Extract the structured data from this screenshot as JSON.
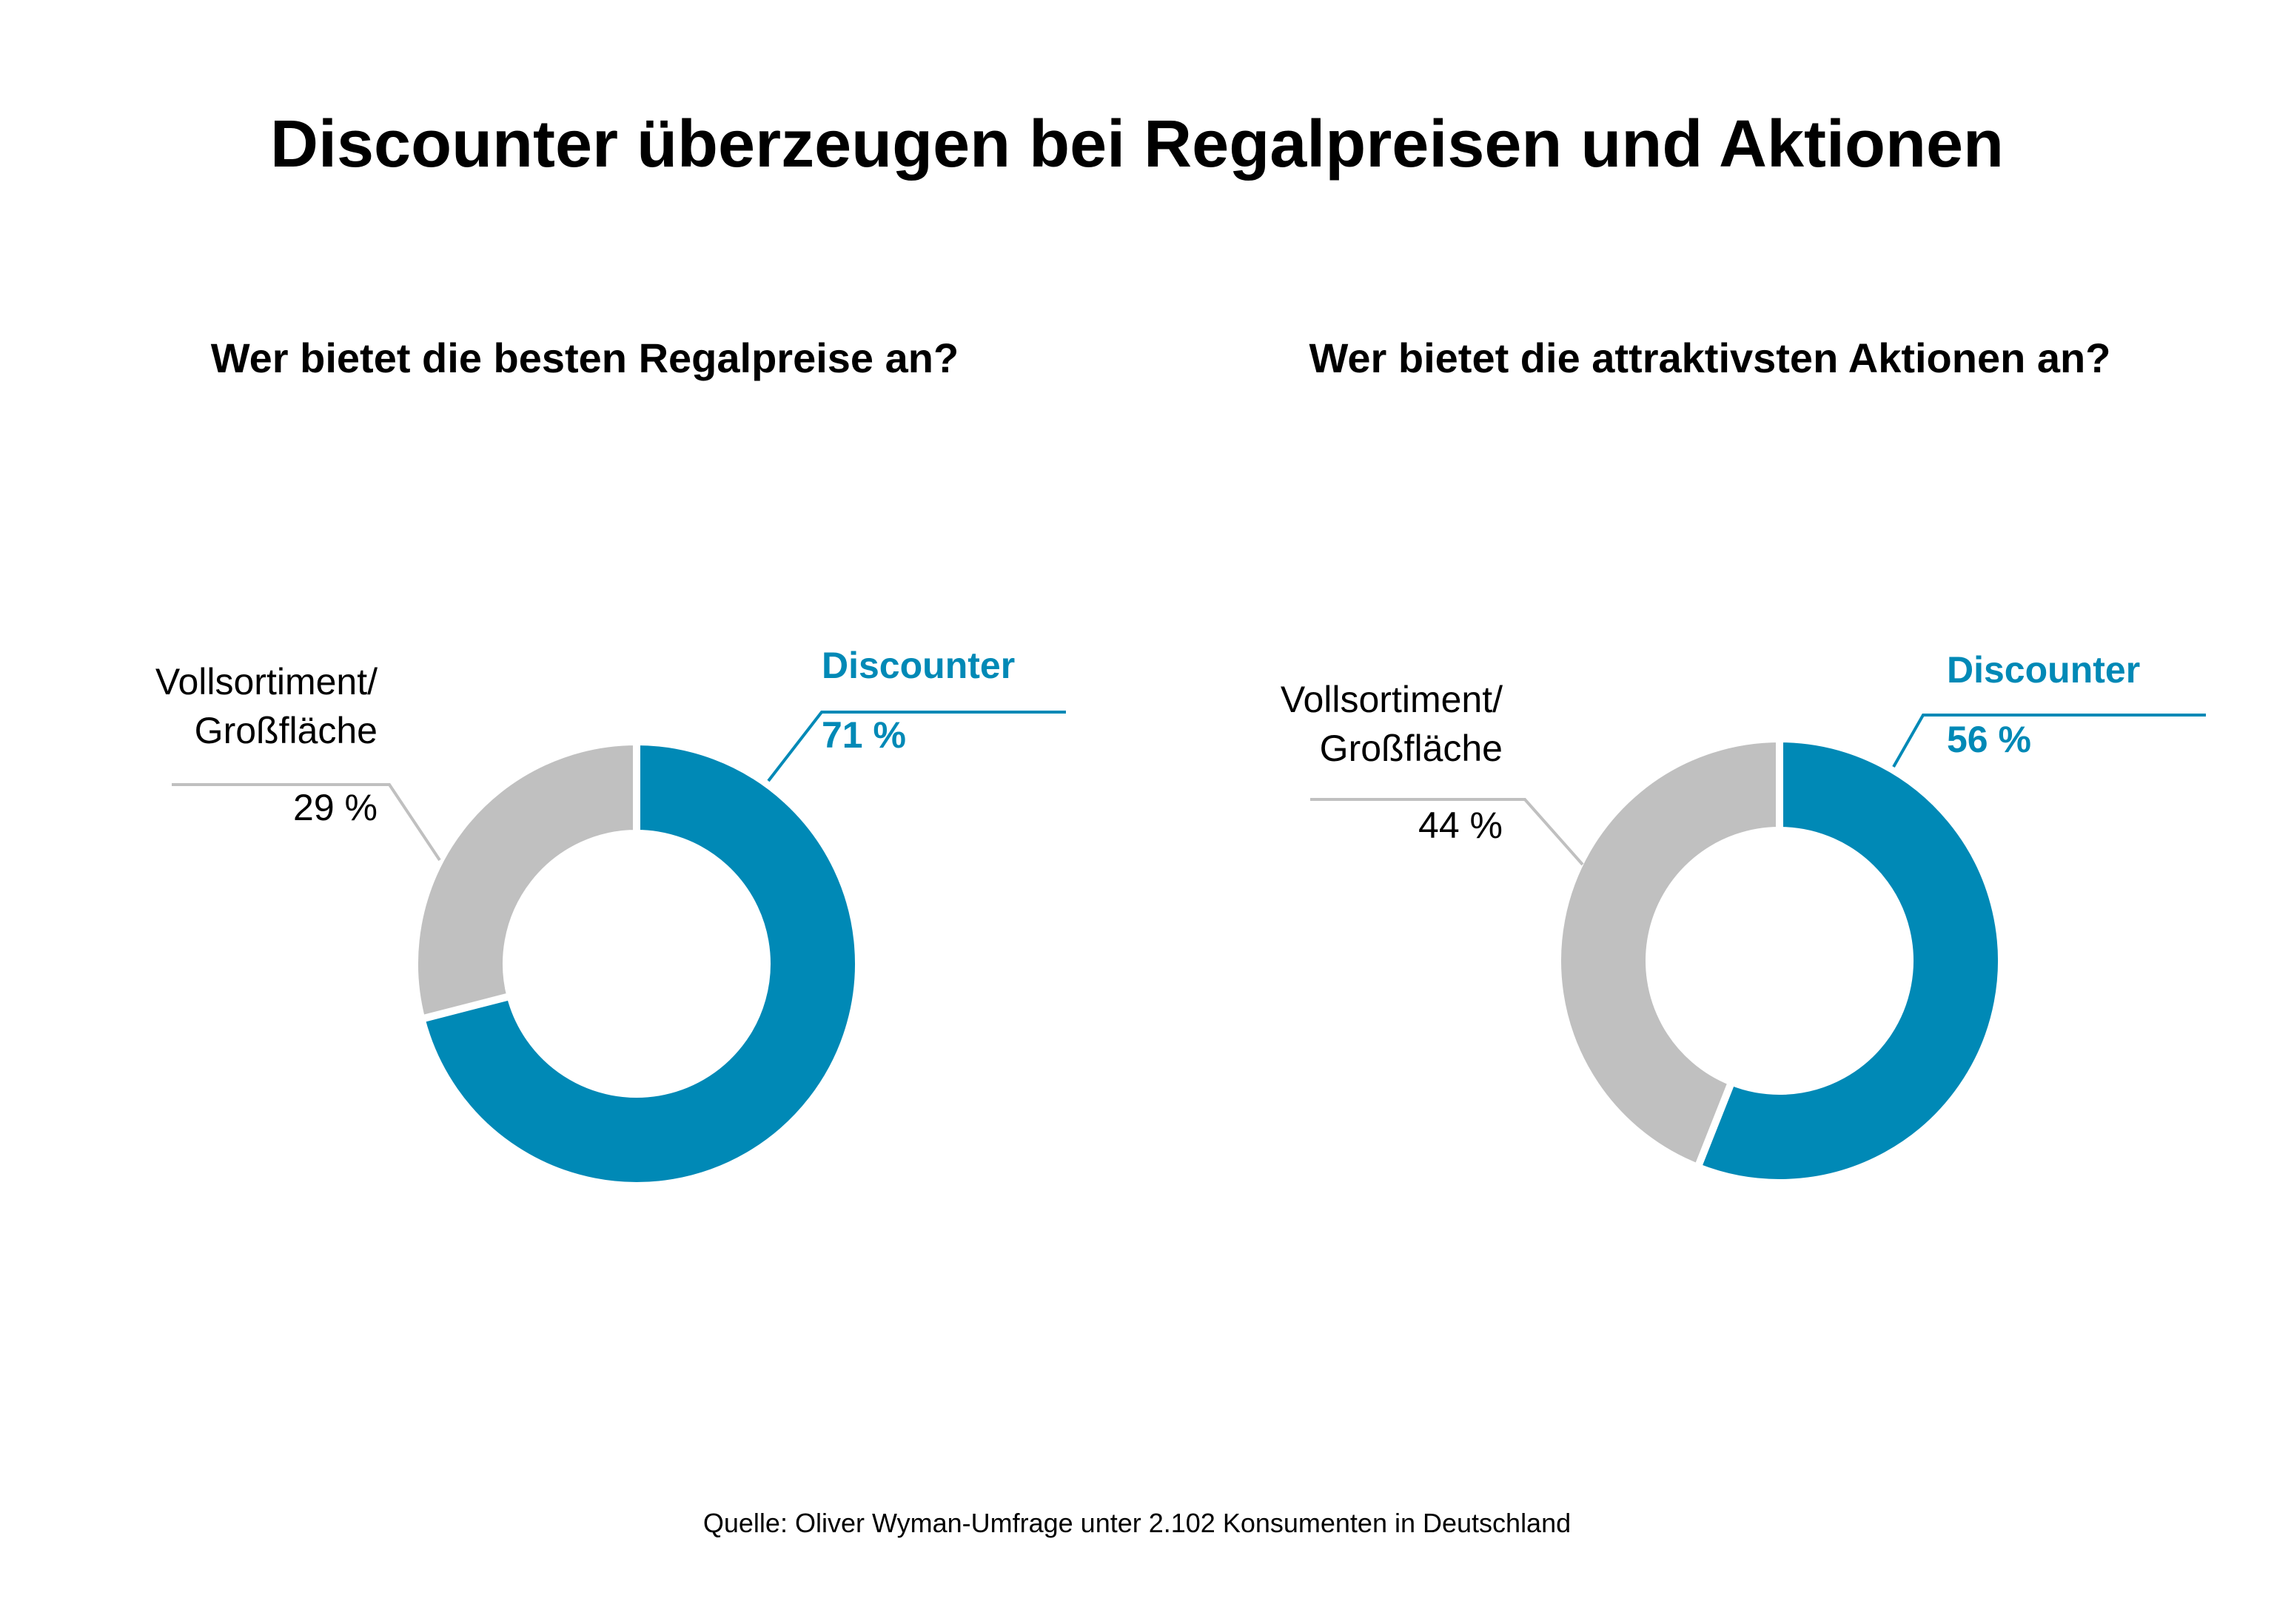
{
  "title": "Discounter überzeugen bei Regalpreisen und Aktionen",
  "source": "Quelle: Oliver Wyman-Umfrage unter 2.102 Konsumenten in Deutschland",
  "colors": {
    "accent": "#0089b6",
    "gray": "#c0c0c0",
    "text": "#000000"
  },
  "chart_data": [
    {
      "type": "pie",
      "title": "Wer bietet die besten Regalpreise an?",
      "slices": [
        {
          "name": "Discounter",
          "value": 71,
          "label": "71 %",
          "color": "#0089b6"
        },
        {
          "name": "Vollsortiment/ Großfläche",
          "label_line1": "Vollsortiment/",
          "label_line2": "Großfläche",
          "value": 29,
          "label": "29 %",
          "color": "#c0c0c0"
        }
      ]
    },
    {
      "type": "pie",
      "title": "Wer bietet die attraktivsten Aktionen an?",
      "slices": [
        {
          "name": "Discounter",
          "value": 56,
          "label": "56 %",
          "color": "#0089b6"
        },
        {
          "name": "Vollsortiment/ Großfläche",
          "label_line1": "Vollsortiment/",
          "label_line2": "Großfläche",
          "value": 44,
          "label": "44 %",
          "color": "#c0c0c0"
        }
      ]
    }
  ]
}
